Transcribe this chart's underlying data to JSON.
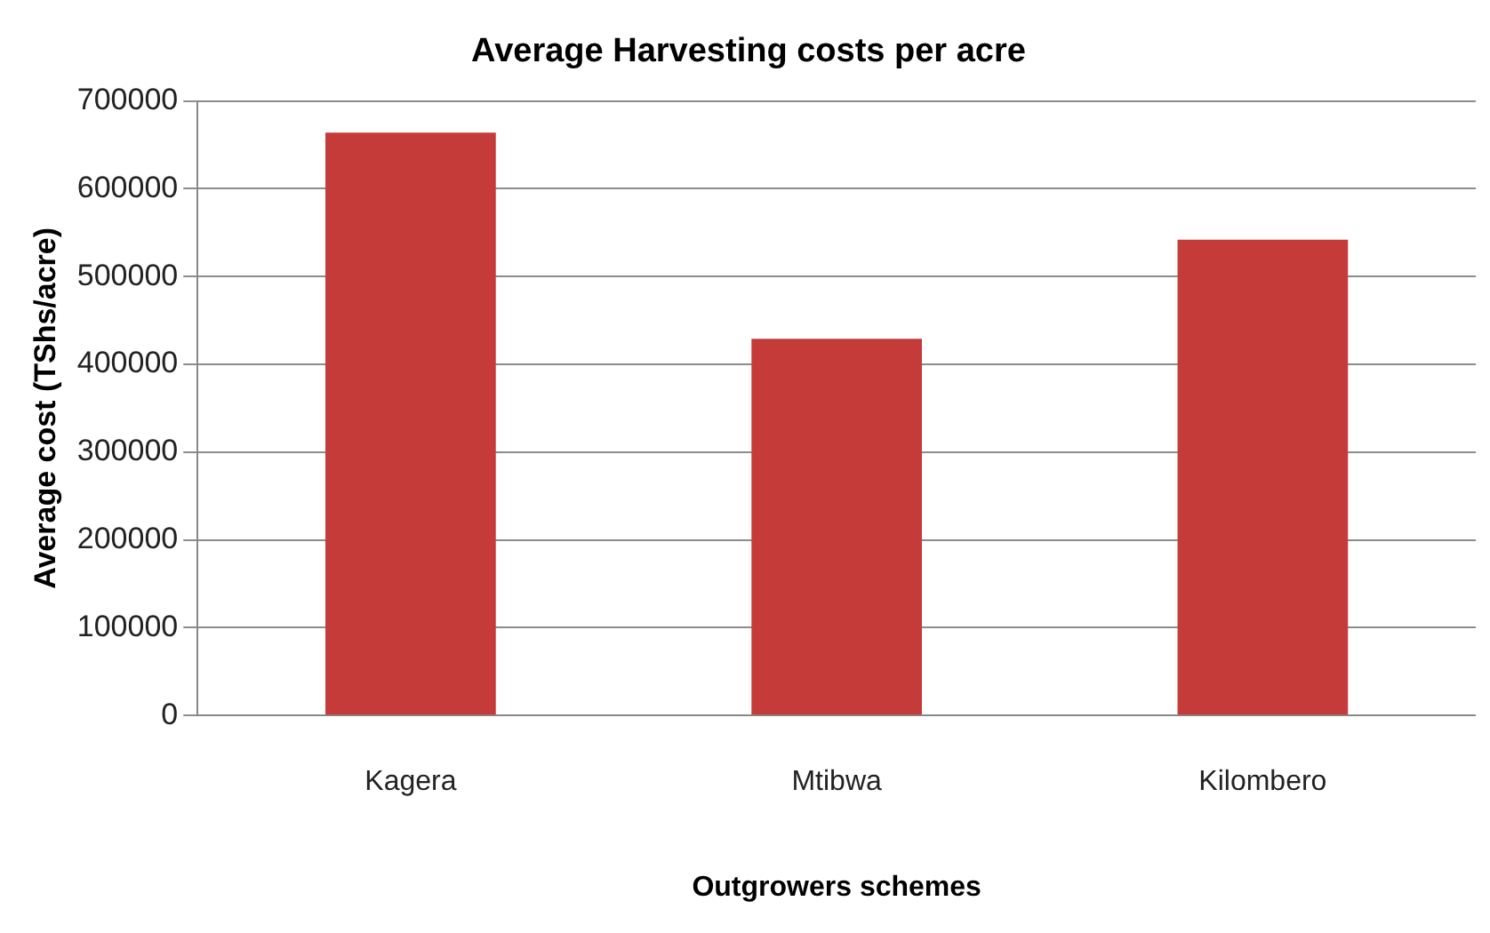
{
  "chart_data": {
    "type": "bar",
    "title": "Average Harvesting costs per acre",
    "xlabel": "Outgrowers schemes",
    "ylabel": "Average cost (TShs/acre)",
    "categories": [
      "Kagera",
      "Mtibwa",
      "Kilombero"
    ],
    "series": [
      {
        "color": "#c43b3a",
        "values": [
          664000,
          429000,
          542000
        ]
      }
    ],
    "ylim": [
      0,
      700000
    ],
    "yticks": [
      0,
      100000,
      200000,
      300000,
      400000,
      500000,
      600000,
      700000
    ],
    "grid": "y",
    "legend": false
  }
}
